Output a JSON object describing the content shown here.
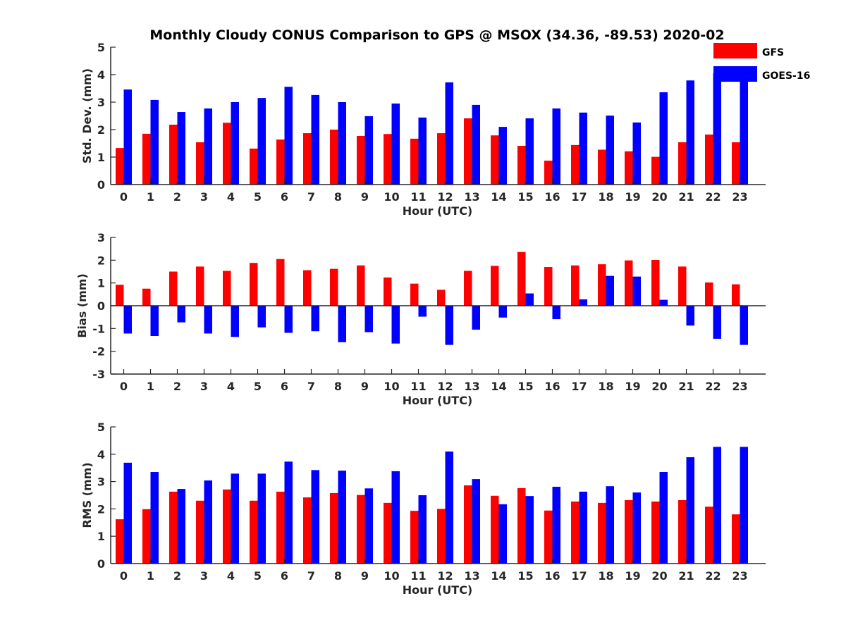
{
  "title": "Monthly Cloudy CONUS Comparison to GPS @ MSOX (34.36, -89.53) 2020-02",
  "legend": [
    {
      "name": "GFS",
      "color": "#ff0000"
    },
    {
      "name": "GOES-16",
      "color": "#0000ff"
    }
  ],
  "chart_data": [
    {
      "type": "bar",
      "xlabel": "Hour (UTC)",
      "ylabel": "Std. Dev. (mm)",
      "ylim": [
        0,
        5
      ],
      "yticks": [
        0,
        1,
        2,
        3,
        4,
        5
      ],
      "categories": [
        "0",
        "1",
        "2",
        "3",
        "4",
        "5",
        "6",
        "7",
        "8",
        "9",
        "10",
        "11",
        "12",
        "13",
        "14",
        "15",
        "16",
        "17",
        "18",
        "19",
        "20",
        "21",
        "22",
        "23"
      ],
      "series": [
        {
          "name": "GFS",
          "color": "#ff0000",
          "values": [
            1.33,
            1.85,
            2.18,
            1.54,
            2.25,
            1.31,
            1.64,
            1.87,
            2.0,
            1.77,
            1.84,
            1.67,
            1.87,
            2.41,
            1.79,
            1.41,
            0.87,
            1.44,
            1.27,
            1.21,
            1.01,
            1.54,
            1.82,
            1.54
          ]
        },
        {
          "name": "GOES-16",
          "color": "#0000ff",
          "values": [
            3.46,
            3.08,
            2.64,
            2.77,
            3.0,
            3.15,
            3.56,
            3.26,
            3.0,
            2.49,
            2.95,
            2.44,
            3.72,
            2.9,
            2.1,
            2.41,
            2.77,
            2.62,
            2.51,
            2.26,
            3.36,
            3.79,
            4.05,
            4.0
          ]
        }
      ],
      "legend": "top-right",
      "grid": false
    },
    {
      "type": "bar",
      "xlabel": "Hour (UTC)",
      "ylabel": "Bias (mm)",
      "ylim": [
        -3,
        3
      ],
      "yticks": [
        -3,
        -2,
        -1,
        0,
        1,
        2,
        3
      ],
      "categories": [
        "0",
        "1",
        "2",
        "3",
        "4",
        "5",
        "6",
        "7",
        "8",
        "9",
        "10",
        "11",
        "12",
        "13",
        "14",
        "15",
        "16",
        "17",
        "18",
        "19",
        "20",
        "21",
        "22",
        "23"
      ],
      "series": [
        {
          "name": "GFS",
          "color": "#ff0000",
          "values": [
            0.92,
            0.75,
            1.5,
            1.72,
            1.53,
            1.88,
            2.05,
            1.56,
            1.62,
            1.77,
            1.24,
            0.97,
            0.7,
            1.53,
            1.75,
            2.36,
            1.7,
            1.77,
            1.82,
            1.99,
            2.01,
            1.72,
            1.02,
            0.94
          ]
        },
        {
          "name": "GOES-16",
          "color": "#0000ff",
          "values": [
            -1.22,
            -1.33,
            -0.73,
            -1.22,
            -1.37,
            -0.95,
            -1.19,
            -1.12,
            -1.6,
            -1.16,
            -1.66,
            -0.48,
            -1.72,
            -1.05,
            -0.52,
            0.54,
            -0.59,
            0.28,
            1.31,
            1.28,
            0.26,
            -0.87,
            -1.45,
            -1.72
          ]
        }
      ],
      "grid": false
    },
    {
      "type": "bar",
      "xlabel": "Hour (UTC)",
      "ylabel": "RMS (mm)",
      "ylim": [
        0,
        5
      ],
      "yticks": [
        0,
        1,
        2,
        3,
        4,
        5
      ],
      "categories": [
        "0",
        "1",
        "2",
        "3",
        "4",
        "5",
        "6",
        "7",
        "8",
        "9",
        "10",
        "11",
        "12",
        "13",
        "14",
        "15",
        "16",
        "17",
        "18",
        "19",
        "20",
        "21",
        "22",
        "23"
      ],
      "series": [
        {
          "name": "GFS",
          "color": "#ff0000",
          "values": [
            1.62,
            1.99,
            2.63,
            2.3,
            2.71,
            2.3,
            2.63,
            2.42,
            2.58,
            2.51,
            2.22,
            1.93,
            2.0,
            2.86,
            2.48,
            2.76,
            1.94,
            2.27,
            2.22,
            2.32,
            2.27,
            2.32,
            2.08,
            1.8
          ]
        },
        {
          "name": "GOES-16",
          "color": "#0000ff",
          "values": [
            3.69,
            3.35,
            2.73,
            3.04,
            3.29,
            3.29,
            3.73,
            3.42,
            3.4,
            2.75,
            3.38,
            2.5,
            4.1,
            3.09,
            2.17,
            2.47,
            2.81,
            2.63,
            2.83,
            2.6,
            3.35,
            3.89,
            4.27,
            4.27
          ]
        }
      ],
      "grid": false
    }
  ]
}
